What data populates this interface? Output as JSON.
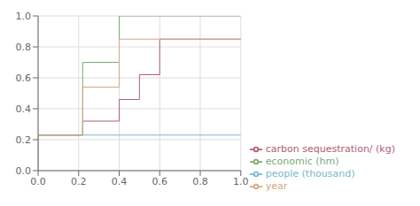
{
  "chart_data": {
    "type": "line",
    "xlim": [
      0.0,
      1.0
    ],
    "ylim": [
      0.0,
      1.0
    ],
    "xticks": [
      {
        "value": 0.0,
        "label": "0.0"
      },
      0.2,
      0.4,
      0.6,
      0.8,
      {
        "value": 1.0,
        "label": "1.0"
      }
    ],
    "yticks": [
      {
        "value": 0.0,
        "label": "0.0"
      },
      0.2,
      0.4,
      0.6,
      0.8,
      {
        "value": 1.0,
        "label": "1.0"
      }
    ],
    "grid": true,
    "legend": "lower right",
    "series": [
      {
        "name": "people (thousand)",
        "color": "#7ab8cc",
        "x": [
          0.0,
          1.0
        ],
        "values": [
          0.23,
          0.23
        ]
      },
      {
        "name": "carbon sequestration/ (kg)",
        "color": "#b06070",
        "x": [
          0.0,
          0.22,
          0.22,
          0.4,
          0.4,
          0.5,
          0.5,
          0.6,
          0.6,
          0.78,
          0.78,
          1.0
        ],
        "values": [
          0.23,
          0.23,
          0.32,
          0.32,
          0.46,
          0.46,
          0.62,
          0.62,
          0.85,
          0.85,
          0.85,
          0.85
        ]
      },
      {
        "name": "economic (hm)",
        "color": "#7aaa7a",
        "x": [
          0.0,
          0.22,
          0.22,
          0.4,
          0.4,
          1.0
        ],
        "values": [
          0.23,
          0.23,
          0.7,
          0.7,
          1.0,
          1.0
        ]
      },
      {
        "name": "year",
        "color": "#d4a882",
        "x": [
          0.0,
          0.0,
          0.22,
          0.22,
          0.4,
          0.4,
          1.0
        ],
        "values": [
          0.0,
          0.23,
          0.23,
          0.54,
          0.54,
          0.85,
          0.85
        ]
      }
    ]
  }
}
